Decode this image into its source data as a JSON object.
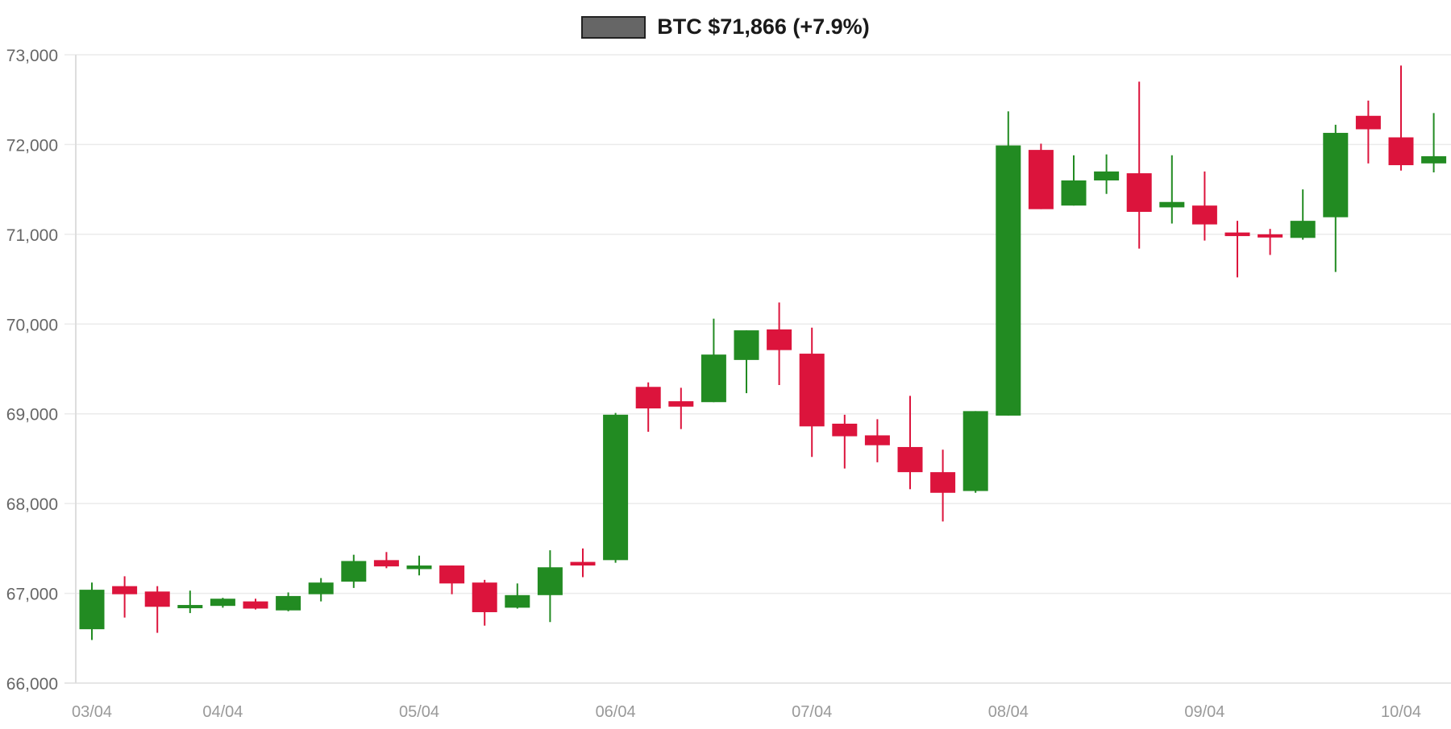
{
  "legend": {
    "label": "BTC $71,866 (+7.9%)",
    "swatch_color": "#666666"
  },
  "colors": {
    "up": "#228B22",
    "down": "#DC143C",
    "grid": "#ebebeb",
    "axis": "#dddddd",
    "ytick_text": "#666666",
    "xtick_text": "#999999"
  },
  "chart_data": {
    "type": "candlestick",
    "title": "BTC $71,866 (+7.9%)",
    "legend": [
      "BTC $71,866 (+7.9%)"
    ],
    "legend_position": "top-center",
    "xlabel": "",
    "ylabel": "",
    "ylim": [
      66000,
      73000
    ],
    "yticks": [
      66000,
      67000,
      68000,
      69000,
      70000,
      71000,
      72000,
      73000
    ],
    "ytick_labels": [
      "66,000",
      "67,000",
      "68,000",
      "69,000",
      "70,000",
      "71,000",
      "72,000",
      "73,000"
    ],
    "xtick_labels": [
      {
        "label": "03/04",
        "index": 0
      },
      {
        "label": "04/04",
        "index": 4
      },
      {
        "label": "05/04",
        "index": 10
      },
      {
        "label": "06/04",
        "index": 16
      },
      {
        "label": "07/04",
        "index": 22
      },
      {
        "label": "08/04",
        "index": 28
      },
      {
        "label": "09/04",
        "index": 34
      },
      {
        "label": "10/04",
        "index": 40
      }
    ],
    "grid": true,
    "candle_interval": "4h",
    "ohlc": [
      [
        66600,
        67120,
        66480,
        67040
      ],
      [
        67080,
        67190,
        66730,
        66990
      ],
      [
        67020,
        67080,
        66560,
        66850
      ],
      [
        66850,
        67030,
        66780,
        66870
      ],
      [
        66860,
        66950,
        66840,
        66940
      ],
      [
        66910,
        66940,
        66820,
        66830
      ],
      [
        66810,
        67010,
        66800,
        66970
      ],
      [
        66990,
        67170,
        66910,
        67120
      ],
      [
        67130,
        67430,
        67060,
        67360
      ],
      [
        67370,
        67460,
        67280,
        67300
      ],
      [
        67270,
        67420,
        67200,
        67310
      ],
      [
        67310,
        67310,
        66990,
        67110
      ],
      [
        67120,
        67150,
        66640,
        66790
      ],
      [
        66840,
        67110,
        66830,
        66980
      ],
      [
        66980,
        67480,
        66680,
        67290
      ],
      [
        67350,
        67500,
        67180,
        67310
      ],
      [
        67370,
        69010,
        67340,
        68990
      ],
      [
        69300,
        69350,
        68800,
        69060
      ],
      [
        69140,
        69290,
        68830,
        69080
      ],
      [
        69130,
        70060,
        69130,
        69660
      ],
      [
        69600,
        69930,
        69230,
        69930
      ],
      [
        69940,
        70240,
        69320,
        69710
      ],
      [
        69670,
        69960,
        68520,
        68860
      ],
      [
        68890,
        68990,
        68390,
        68750
      ],
      [
        68760,
        68940,
        68460,
        68650
      ],
      [
        68630,
        69200,
        68160,
        68350
      ],
      [
        68350,
        68600,
        67800,
        68120
      ],
      [
        68140,
        69030,
        68120,
        69030
      ],
      [
        68980,
        72370,
        68980,
        71990
      ],
      [
        71940,
        72010,
        71280,
        71280
      ],
      [
        71320,
        71880,
        71320,
        71600
      ],
      [
        71600,
        71890,
        71450,
        71700
      ],
      [
        71680,
        72700,
        70840,
        71250
      ],
      [
        71300,
        71880,
        71120,
        71360
      ],
      [
        71320,
        71700,
        70930,
        71110
      ],
      [
        71020,
        71150,
        70520,
        70980
      ],
      [
        71000,
        71060,
        70770,
        70990
      ],
      [
        70960,
        71500,
        70940,
        71150
      ],
      [
        71190,
        72220,
        70580,
        72130
      ],
      [
        72320,
        72490,
        71790,
        72170
      ],
      [
        72080,
        72880,
        71710,
        71770
      ],
      [
        71790,
        72350,
        71690,
        71870
      ]
    ],
    "ohlc_fields": [
      "open",
      "high",
      "low",
      "close"
    ]
  }
}
